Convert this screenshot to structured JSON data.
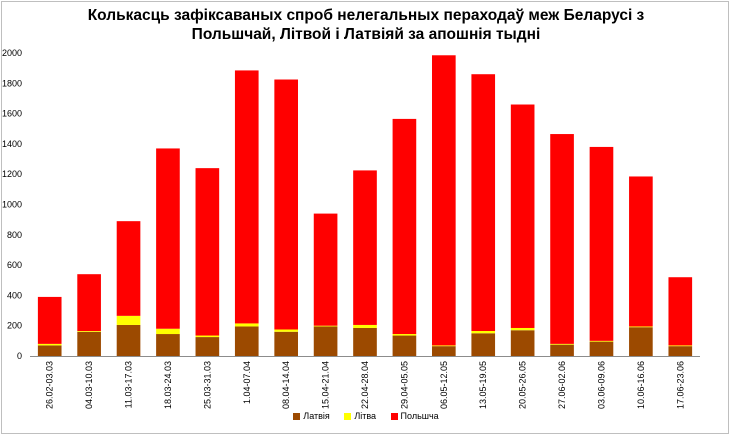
{
  "chart_data": {
    "type": "bar",
    "stacked": true,
    "title_lines": [
      "Колькасць зафіксаваных спроб нелегальных пераходаў меж Беларусі з",
      "Польшчай, Літвой і Латвіяй за апошнія тыдні"
    ],
    "xlabel": "",
    "ylabel": "",
    "ylim": [
      0,
      2000
    ],
    "yticks": [
      0,
      200,
      400,
      600,
      800,
      1000,
      1200,
      1400,
      1600,
      1800,
      2000
    ],
    "grid": false,
    "legend_position": "bottom",
    "categories": [
      "26.02-03.03",
      "04.03-10.03",
      "11.03-17.03",
      "18.03-24.03",
      "25.03-31.03",
      "1.04-07.04",
      "08.04-14.04",
      "15.04-21.04",
      "22.04-28.04",
      "29.04-05.05",
      "06.05-12.05",
      "13.05-19.05",
      "20.05-26.05",
      "27.06-02.06",
      "03.06-09.06",
      "10.06-16.06",
      "17.06-23.06"
    ],
    "series": [
      {
        "name": "Латвія",
        "color": "#9c4a00",
        "values": [
          70,
          160,
          205,
          145,
          125,
          195,
          160,
          195,
          185,
          135,
          65,
          150,
          170,
          75,
          95,
          190,
          65
        ]
      },
      {
        "name": "Літва",
        "color": "#ffff00",
        "values": [
          10,
          5,
          60,
          35,
          10,
          20,
          15,
          5,
          20,
          10,
          5,
          15,
          15,
          5,
          5,
          5,
          5
        ]
      },
      {
        "name": "Польшча",
        "color": "#ff0000",
        "values": [
          310,
          375,
          625,
          1190,
          1105,
          1670,
          1650,
          740,
          1020,
          1420,
          1915,
          1695,
          1475,
          1385,
          1280,
          990,
          450
        ]
      }
    ]
  }
}
